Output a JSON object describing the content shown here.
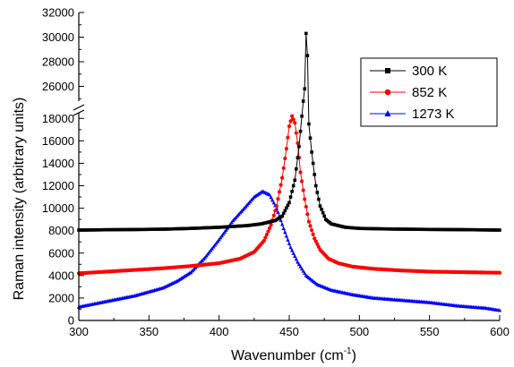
{
  "chart_data": {
    "type": "line",
    "xlabel": "Wavenumber (cm",
    "xlabel_sup": "-1",
    "xlabel_close": ")",
    "ylabel": "Raman intensity (arbitrary units)",
    "xlim": [
      300,
      600
    ],
    "x_ticks": [
      300,
      350,
      400,
      450,
      500,
      550,
      600
    ],
    "y_lower_range": [
      0,
      18500
    ],
    "y_lower_ticks": [
      0,
      2000,
      4000,
      6000,
      8000,
      10000,
      12000,
      14000,
      16000,
      18000
    ],
    "y_upper_range": [
      24800,
      32000
    ],
    "y_upper_ticks": [
      26000,
      28000,
      30000,
      32000
    ],
    "y_axis_break": true,
    "grid": false,
    "legend_position": "top-right",
    "series": [
      {
        "name": "300 K",
        "color": "#000000",
        "marker": "square",
        "points": [
          [
            300,
            8050
          ],
          [
            320,
            8080
          ],
          [
            340,
            8100
          ],
          [
            360,
            8130
          ],
          [
            380,
            8200
          ],
          [
            400,
            8300
          ],
          [
            420,
            8450
          ],
          [
            430,
            8600
          ],
          [
            440,
            8900
          ],
          [
            445,
            9300
          ],
          [
            450,
            10500
          ],
          [
            454,
            12500
          ],
          [
            457,
            15500
          ],
          [
            459,
            18200
          ],
          [
            461,
            25800
          ],
          [
            462,
            30300
          ],
          [
            463,
            28500
          ],
          [
            464,
            17500
          ],
          [
            466,
            15000
          ],
          [
            469,
            12000
          ],
          [
            472,
            10200
          ],
          [
            476,
            9000
          ],
          [
            480,
            8600
          ],
          [
            490,
            8300
          ],
          [
            500,
            8200
          ],
          [
            520,
            8150
          ],
          [
            540,
            8120
          ],
          [
            560,
            8100
          ],
          [
            580,
            8080
          ],
          [
            600,
            8050
          ]
        ]
      },
      {
        "name": "852 K",
        "color": "#ff0000",
        "marker": "circle",
        "points": [
          [
            300,
            4200
          ],
          [
            320,
            4350
          ],
          [
            340,
            4500
          ],
          [
            360,
            4650
          ],
          [
            380,
            4850
          ],
          [
            400,
            5100
          ],
          [
            415,
            5500
          ],
          [
            425,
            6100
          ],
          [
            432,
            7100
          ],
          [
            437,
            8500
          ],
          [
            441,
            10200
          ],
          [
            445,
            12700
          ],
          [
            448,
            15300
          ],
          [
            450,
            17300
          ],
          [
            452,
            18200
          ],
          [
            454,
            17600
          ],
          [
            456,
            15800
          ],
          [
            458,
            13200
          ],
          [
            461,
            10800
          ],
          [
            464,
            8800
          ],
          [
            468,
            7300
          ],
          [
            472,
            6300
          ],
          [
            478,
            5500
          ],
          [
            485,
            5100
          ],
          [
            495,
            4800
          ],
          [
            510,
            4600
          ],
          [
            530,
            4450
          ],
          [
            550,
            4350
          ],
          [
            575,
            4300
          ],
          [
            600,
            4250
          ]
        ]
      },
      {
        "name": "1273 K",
        "color": "#0000ff",
        "marker": "triangle",
        "points": [
          [
            300,
            1200
          ],
          [
            320,
            1700
          ],
          [
            340,
            2200
          ],
          [
            360,
            2900
          ],
          [
            370,
            3500
          ],
          [
            380,
            4300
          ],
          [
            390,
            5600
          ],
          [
            400,
            7200
          ],
          [
            410,
            8900
          ],
          [
            418,
            10000
          ],
          [
            425,
            11000
          ],
          [
            431,
            11500
          ],
          [
            436,
            11200
          ],
          [
            441,
            10000
          ],
          [
            446,
            8200
          ],
          [
            451,
            6500
          ],
          [
            456,
            5200
          ],
          [
            462,
            4000
          ],
          [
            470,
            3200
          ],
          [
            480,
            2700
          ],
          [
            495,
            2300
          ],
          [
            510,
            2000
          ],
          [
            530,
            1800
          ],
          [
            550,
            1600
          ],
          [
            570,
            1300
          ],
          [
            590,
            1100
          ],
          [
            600,
            900
          ]
        ]
      }
    ]
  }
}
